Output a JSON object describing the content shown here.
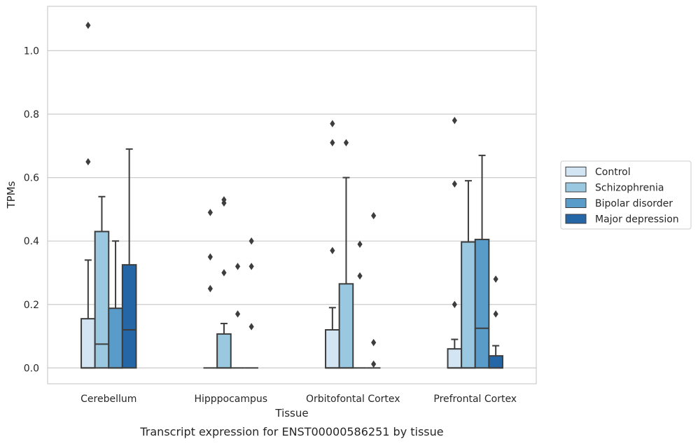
{
  "caption": "Transcript expression for ENST00000586251 by tissue",
  "chart_data": {
    "type": "box",
    "title": "",
    "xlabel": "Tissue",
    "ylabel": "TPMs",
    "ylim": [
      -0.05,
      1.14
    ],
    "yticks": [
      0.0,
      0.2,
      0.4,
      0.6,
      0.8,
      1.0
    ],
    "ytick_labels": [
      "0.0",
      "0.2",
      "0.4",
      "0.6",
      "0.8",
      "1.0"
    ],
    "grid": "horizontal",
    "legend_position": "right",
    "categories": [
      "Cerebellum",
      "Hipppocampus",
      "Orbitofontal Cortex",
      "Prefrontal Cortex"
    ],
    "series": [
      {
        "name": "Control",
        "color": "#d3e4f3",
        "boxes": [
          {
            "q1": 0.0,
            "median": 0.0,
            "q3": 0.155,
            "whisker_low": 0.0,
            "whisker_high": 0.34,
            "outliers": [
              0.65,
              1.08
            ]
          },
          {
            "q1": 0.0,
            "median": 0.0,
            "q3": 0.0,
            "whisker_low": 0.0,
            "whisker_high": 0.0,
            "outliers": [
              0.25,
              0.35,
              0.49
            ]
          },
          {
            "q1": 0.0,
            "median": 0.0,
            "q3": 0.12,
            "whisker_low": 0.0,
            "whisker_high": 0.19,
            "outliers": [
              0.37,
              0.71,
              0.77
            ]
          },
          {
            "q1": 0.0,
            "median": 0.0,
            "q3": 0.06,
            "whisker_low": 0.0,
            "whisker_high": 0.09,
            "outliers": [
              0.2,
              0.58,
              0.78
            ]
          }
        ]
      },
      {
        "name": "Schizophrenia",
        "color": "#9ac8e0",
        "boxes": [
          {
            "q1": 0.0,
            "median": 0.075,
            "q3": 0.43,
            "whisker_low": 0.0,
            "whisker_high": 0.54,
            "outliers": []
          },
          {
            "q1": 0.0,
            "median": 0.0,
            "q3": 0.107,
            "whisker_low": 0.0,
            "whisker_high": 0.14,
            "outliers": [
              0.3,
              0.52,
              0.53
            ]
          },
          {
            "q1": 0.0,
            "median": 0.0,
            "q3": 0.265,
            "whisker_low": 0.0,
            "whisker_high": 0.6,
            "outliers": [
              0.71
            ]
          },
          {
            "q1": 0.0,
            "median": 0.0,
            "q3": 0.397,
            "whisker_low": 0.0,
            "whisker_high": 0.59,
            "outliers": []
          }
        ]
      },
      {
        "name": "Bipolar disorder",
        "color": "#5a9cc9",
        "boxes": [
          {
            "q1": 0.0,
            "median": 0.0,
            "q3": 0.188,
            "whisker_low": 0.0,
            "whisker_high": 0.4,
            "outliers": []
          },
          {
            "q1": 0.0,
            "median": 0.0,
            "q3": 0.0,
            "whisker_low": 0.0,
            "whisker_high": 0.0,
            "outliers": [
              0.17,
              0.32
            ]
          },
          {
            "q1": 0.0,
            "median": 0.0,
            "q3": 0.0,
            "whisker_low": 0.0,
            "whisker_high": 0.0,
            "outliers": [
              0.29,
              0.39
            ]
          },
          {
            "q1": 0.0,
            "median": 0.125,
            "q3": 0.405,
            "whisker_low": 0.0,
            "whisker_high": 0.67,
            "outliers": []
          }
        ]
      },
      {
        "name": "Major depression",
        "color": "#2566a6",
        "boxes": [
          {
            "q1": 0.0,
            "median": 0.12,
            "q3": 0.325,
            "whisker_low": 0.0,
            "whisker_high": 0.69,
            "outliers": []
          },
          {
            "q1": 0.0,
            "median": 0.0,
            "q3": 0.0,
            "whisker_low": 0.0,
            "whisker_high": 0.0,
            "outliers": [
              0.13,
              0.32,
              0.4
            ]
          },
          {
            "q1": 0.0,
            "median": 0.0,
            "q3": 0.0,
            "whisker_low": 0.0,
            "whisker_high": 0.0,
            "outliers": [
              0.012,
              0.08,
              0.48
            ]
          },
          {
            "q1": 0.0,
            "median": 0.0,
            "q3": 0.038,
            "whisker_low": 0.0,
            "whisker_high": 0.07,
            "outliers": [
              0.17,
              0.28
            ]
          }
        ]
      }
    ]
  }
}
